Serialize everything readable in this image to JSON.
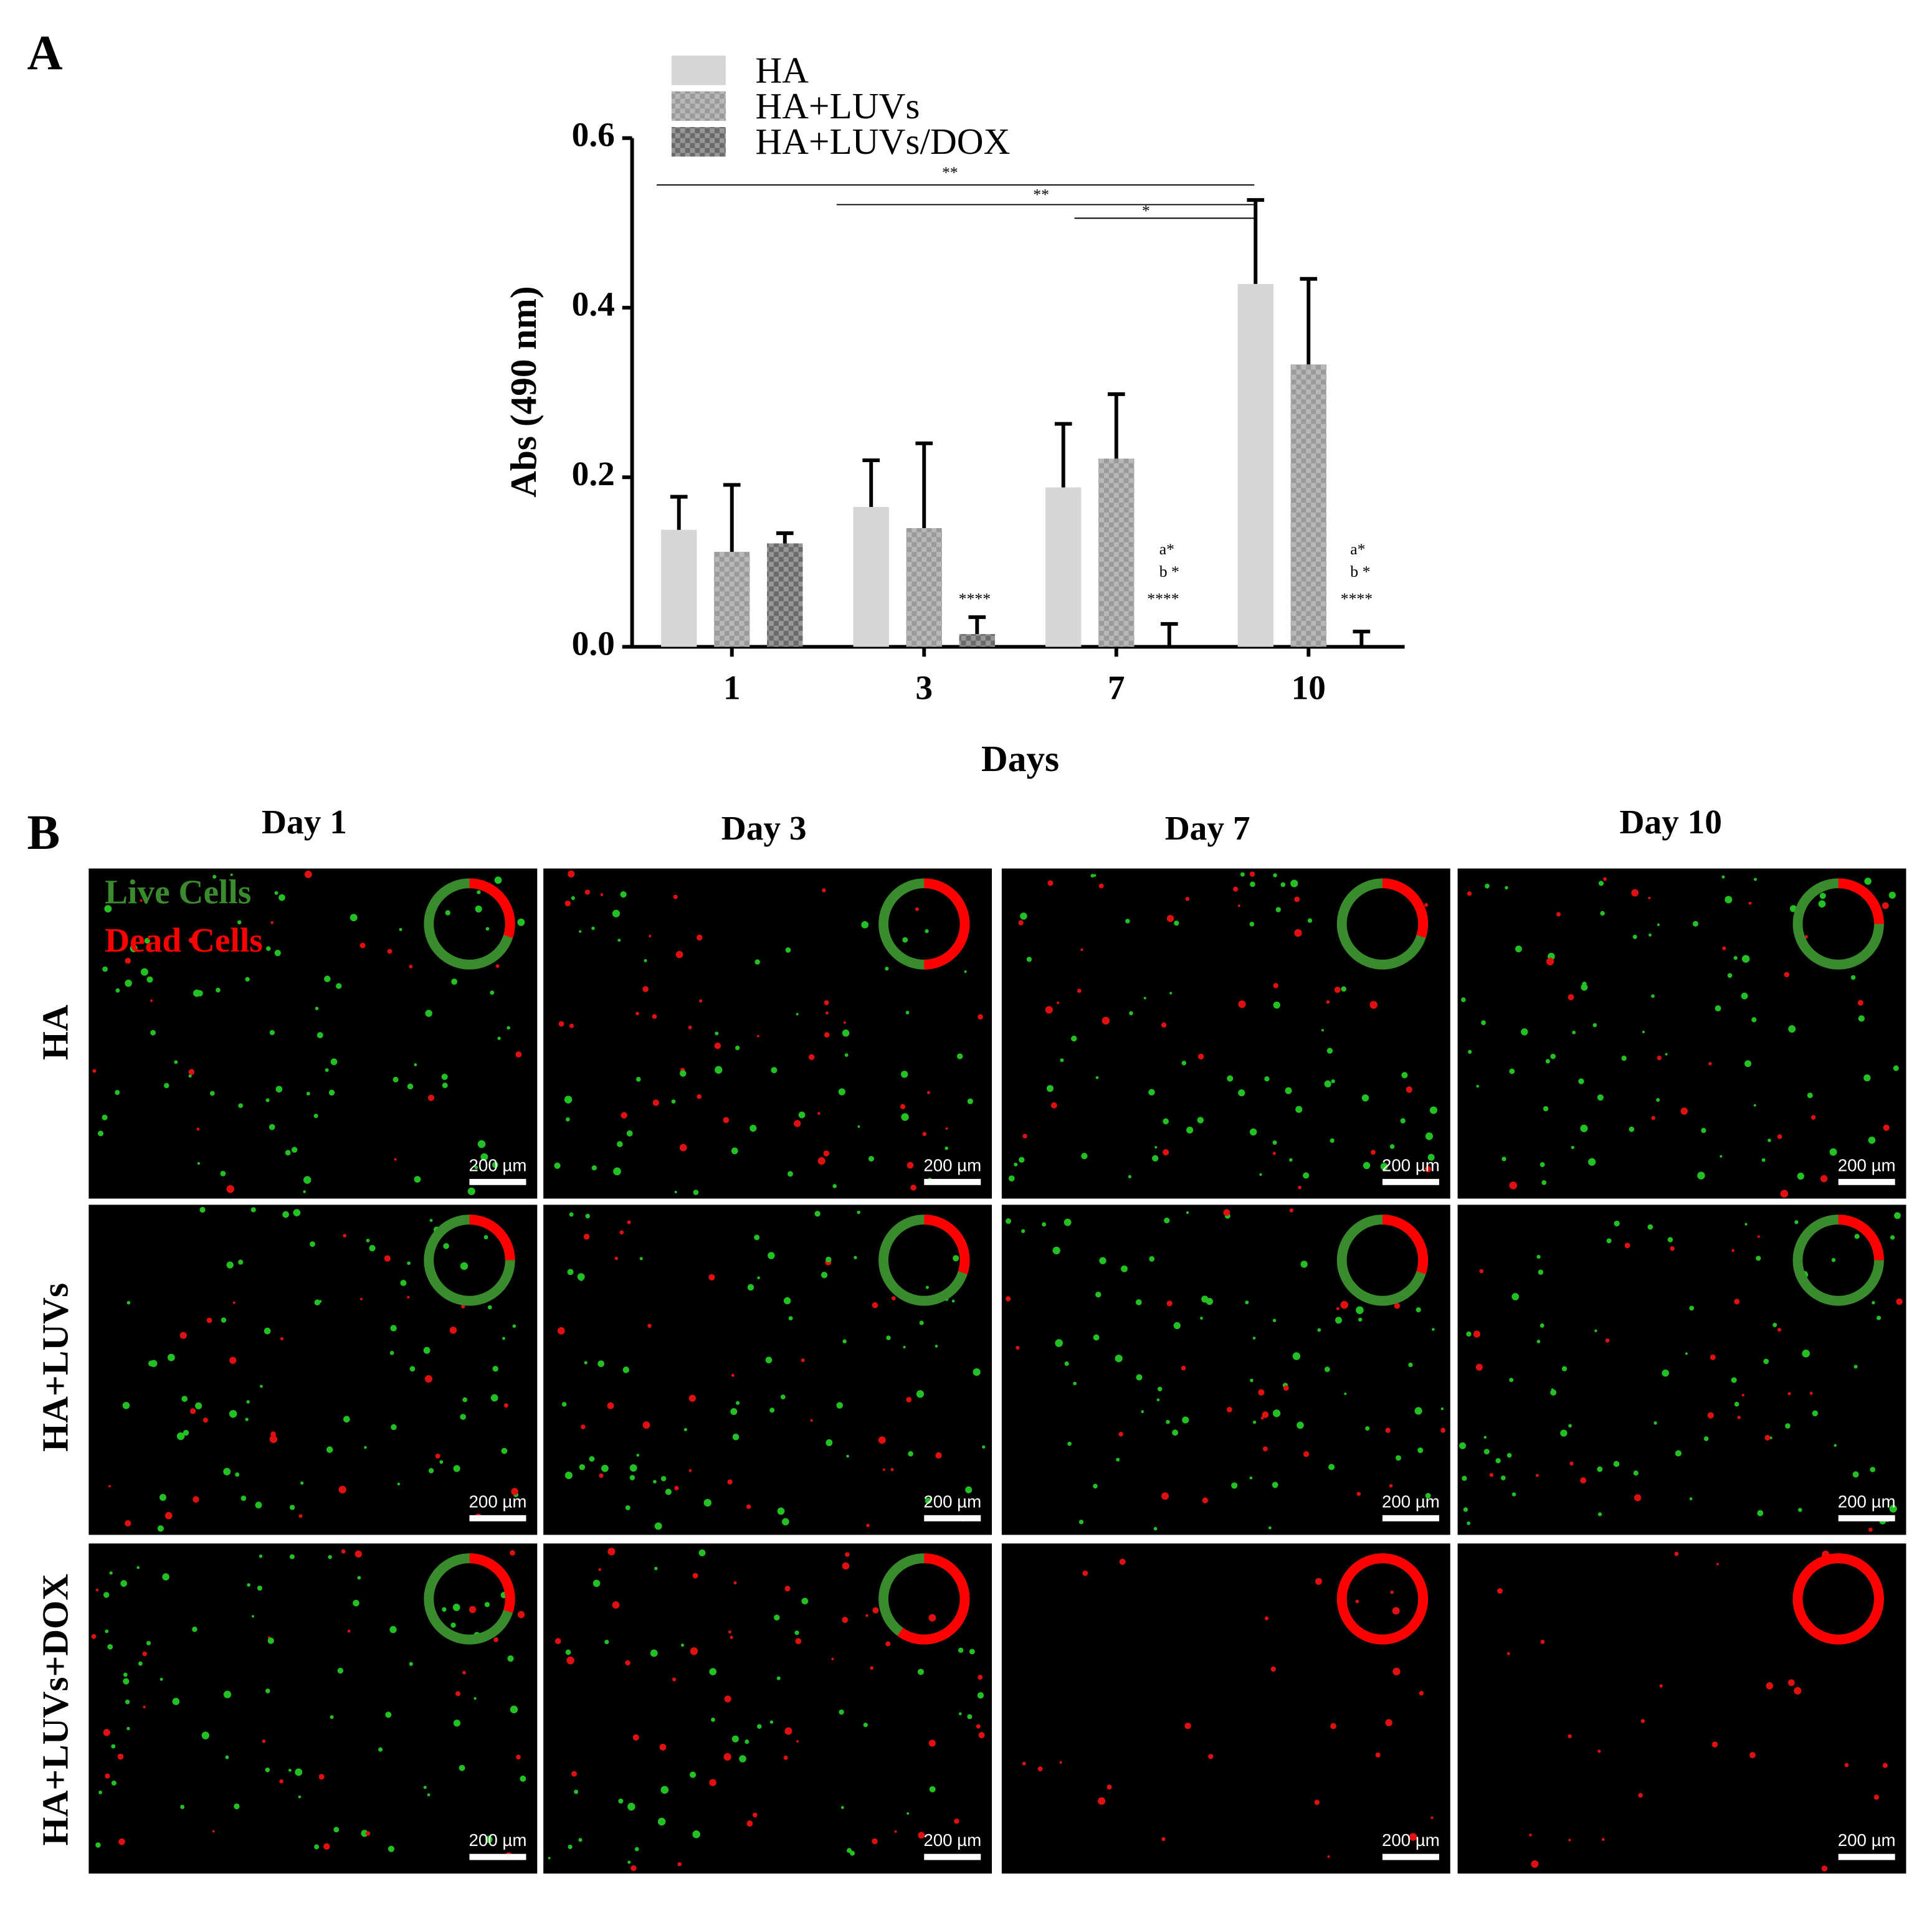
{
  "panel_labels": [
    "A",
    "B"
  ],
  "chart_data": {
    "type": "bar",
    "xlabel": "Days",
    "ylabel": "Abs (490 nm)",
    "categories": [
      "1",
      "3",
      "7",
      "10"
    ],
    "series": [
      {
        "name": "HA",
        "color": "#d6d6d6",
        "values": [
          0.138,
          0.165,
          0.188,
          0.428
        ],
        "errors": [
          0.039,
          0.055,
          0.075,
          0.099
        ]
      },
      {
        "name": "HA+LUVs",
        "color": "#9a9a9a",
        "values": [
          0.112,
          0.14,
          0.222,
          0.333
        ],
        "errors": [
          0.079,
          0.1,
          0.076,
          0.101
        ]
      },
      {
        "name": "HA+LUVs/DOX",
        "color": "#6a6a6a",
        "values": [
          0.122,
          0.015,
          0.0,
          0.0
        ],
        "errors": [
          0.012,
          0.02,
          0.027,
          0.018
        ]
      }
    ],
    "ylim": [
      0,
      0.6
    ],
    "yticks": [
      {
        "value": 0,
        "label": "0.0"
      },
      0.2,
      0.4,
      0.6
    ],
    "annotations": [
      "**",
      "**",
      "*",
      "****",
      "****",
      "****",
      "a*",
      "b *",
      "a*",
      "b *"
    ]
  },
  "micrographs": {
    "columns": [
      "Day 1",
      "Day 3",
      "Day 7",
      "Day 10"
    ],
    "rows": [
      "HA",
      "HA+LUVs",
      "HA+LUVs+DOX"
    ],
    "legend": [
      "Live Cells",
      "Dead Cells"
    ],
    "scale_bar": "200 µm",
    "dead_fraction": [
      [
        0.3,
        0.5,
        0.3,
        0.25
      ],
      [
        0.25,
        0.3,
        0.3,
        0.25
      ],
      [
        0.3,
        0.6,
        1.0,
        1.0
      ]
    ]
  }
}
